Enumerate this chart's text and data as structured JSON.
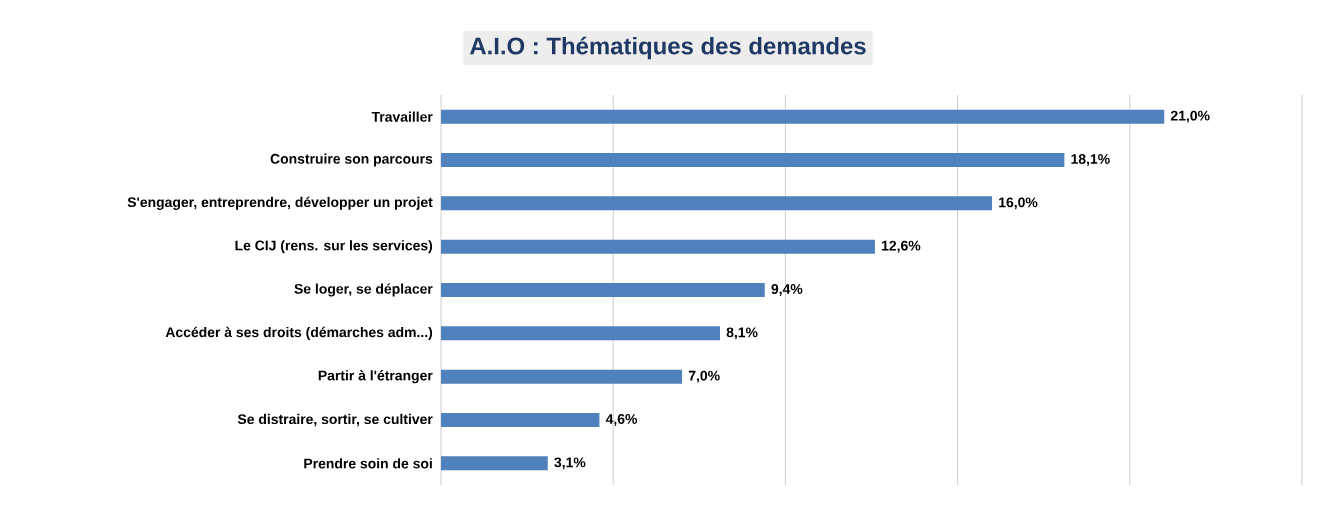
{
  "chart_data": {
    "type": "bar",
    "orientation": "horizontal",
    "title": "A.I.O : Thématiques des demandes",
    "categories": [
      "Travailler",
      "Construire son parcours",
      "S'engager, entreprendre, développer un projet",
      "Le CIJ (rens. sur les services)",
      "Se loger, se déplacer",
      "Accéder à ses droits (démarches adm...)",
      "Partir à l'étranger",
      "Se distraire, sortir, se cultiver",
      "Prendre soin de soi"
    ],
    "values": [
      21.0,
      18.1,
      16.0,
      12.6,
      9.4,
      8.1,
      7.0,
      4.6,
      3.1
    ],
    "value_labels": [
      "21,0%",
      "18,1%",
      "16,0%",
      "12,6%",
      "9,4%",
      "8,1%",
      "7,0%",
      "4,6%",
      "3,1%"
    ],
    "color": "#4f81bd",
    "xlim": [
      0,
      25
    ],
    "xticks": [
      {
        "value": 0,
        "label": null
      },
      {
        "value": 5,
        "label": null
      },
      {
        "value": 10,
        "label": null
      },
      {
        "value": 15,
        "label": null
      },
      {
        "value": 20,
        "label": null
      },
      {
        "value": 25,
        "label": null
      }
    ],
    "grid": "x",
    "tick_labels": "y"
  }
}
